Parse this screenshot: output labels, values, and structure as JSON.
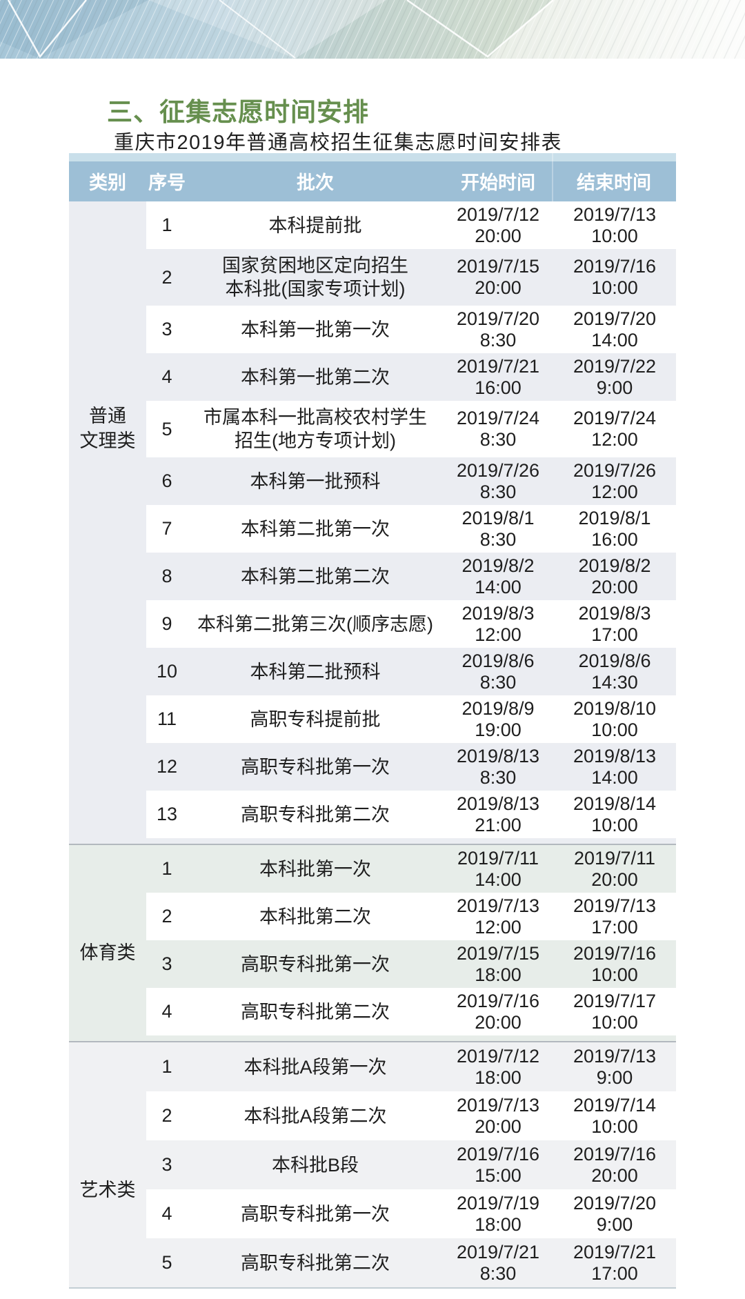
{
  "page": {
    "title": "三、征集志愿时间安排",
    "subtitle": "重庆市2019年普通高校招生征集志愿时间安排表"
  },
  "table": {
    "headers": [
      "类别",
      "序号",
      "批次",
      "开始时间",
      "结束时间"
    ],
    "sections": [
      {
        "category": "普通文理类",
        "category_lines": [
          "普通",
          "文理类"
        ],
        "rows": [
          {
            "no": "1",
            "batch_lines": [
              "本科提前批"
            ],
            "start": [
              "2019/7/12",
              "20:00"
            ],
            "end": [
              "2019/7/13",
              "10:00"
            ]
          },
          {
            "no": "2",
            "batch_lines": [
              "国家贫困地区定向招生",
              "本科批(国家专项计划)"
            ],
            "start": [
              "2019/7/15",
              "20:00"
            ],
            "end": [
              "2019/7/16",
              "10:00"
            ]
          },
          {
            "no": "3",
            "batch_lines": [
              "本科第一批第一次"
            ],
            "start": [
              "2019/7/20",
              "8:30"
            ],
            "end": [
              "2019/7/20",
              "14:00"
            ]
          },
          {
            "no": "4",
            "batch_lines": [
              "本科第一批第二次"
            ],
            "start": [
              "2019/7/21",
              "16:00"
            ],
            "end": [
              "2019/7/22",
              "9:00"
            ]
          },
          {
            "no": "5",
            "batch_lines": [
              "市属本科一批高校农村学生",
              "招生(地方专项计划)"
            ],
            "start": [
              "2019/7/24",
              "8:30"
            ],
            "end": [
              "2019/7/24",
              "12:00"
            ]
          },
          {
            "no": "6",
            "batch_lines": [
              "本科第一批预科"
            ],
            "start": [
              "2019/7/26",
              "8:30"
            ],
            "end": [
              "2019/7/26",
              "12:00"
            ]
          },
          {
            "no": "7",
            "batch_lines": [
              "本科第二批第一次"
            ],
            "start": [
              "2019/8/1",
              "8:30"
            ],
            "end": [
              "2019/8/1",
              "16:00"
            ]
          },
          {
            "no": "8",
            "batch_lines": [
              "本科第二批第二次"
            ],
            "start": [
              "2019/8/2",
              "14:00"
            ],
            "end": [
              "2019/8/2",
              "20:00"
            ]
          },
          {
            "no": "9",
            "batch_lines": [
              "本科第二批第三次(顺序志愿)"
            ],
            "start": [
              "2019/8/3",
              "12:00"
            ],
            "end": [
              "2019/8/3",
              "17:00"
            ]
          },
          {
            "no": "10",
            "batch_lines": [
              "本科第二批预科"
            ],
            "start": [
              "2019/8/6",
              "8:30"
            ],
            "end": [
              "2019/8/6",
              "14:30"
            ]
          },
          {
            "no": "11",
            "batch_lines": [
              "高职专科提前批"
            ],
            "start": [
              "2019/8/9",
              "19:00"
            ],
            "end": [
              "2019/8/10",
              "10:00"
            ]
          },
          {
            "no": "12",
            "batch_lines": [
              "高职专科批第一次"
            ],
            "start": [
              "2019/8/13",
              "8:30"
            ],
            "end": [
              "2019/8/13",
              "14:00"
            ]
          },
          {
            "no": "13",
            "batch_lines": [
              "高职专科批第二次"
            ],
            "start": [
              "2019/8/13",
              "21:00"
            ],
            "end": [
              "2019/8/14",
              "10:00"
            ]
          }
        ]
      },
      {
        "category": "体育类",
        "category_lines": [
          "体育类"
        ],
        "rows": [
          {
            "no": "1",
            "batch_lines": [
              "本科批第一次"
            ],
            "start": [
              "2019/7/11",
              "14:00"
            ],
            "end": [
              "2019/7/11",
              "20:00"
            ]
          },
          {
            "no": "2",
            "batch_lines": [
              "本科批第二次"
            ],
            "start": [
              "2019/7/13",
              "12:00"
            ],
            "end": [
              "2019/7/13",
              "17:00"
            ]
          },
          {
            "no": "3",
            "batch_lines": [
              "高职专科批第一次"
            ],
            "start": [
              "2019/7/15",
              "18:00"
            ],
            "end": [
              "2019/7/16",
              "10:00"
            ]
          },
          {
            "no": "4",
            "batch_lines": [
              "高职专科批第二次"
            ],
            "start": [
              "2019/7/16",
              "20:00"
            ],
            "end": [
              "2019/7/17",
              "10:00"
            ]
          }
        ]
      },
      {
        "category": "艺术类",
        "category_lines": [
          "艺术类"
        ],
        "rows": [
          {
            "no": "1",
            "batch_lines": [
              "本科批A段第一次"
            ],
            "start": [
              "2019/7/12",
              "18:00"
            ],
            "end": [
              "2019/7/13",
              "9:00"
            ]
          },
          {
            "no": "2",
            "batch_lines": [
              "本科批A段第二次"
            ],
            "start": [
              "2019/7/13",
              "20:00"
            ],
            "end": [
              "2019/7/14",
              "10:00"
            ]
          },
          {
            "no": "3",
            "batch_lines": [
              "本科批B段"
            ],
            "start": [
              "2019/7/16",
              "15:00"
            ],
            "end": [
              "2019/7/16",
              "20:00"
            ]
          },
          {
            "no": "4",
            "batch_lines": [
              "高职专科批第一次"
            ],
            "start": [
              "2019/7/19",
              "18:00"
            ],
            "end": [
              "2019/7/20",
              "9:00"
            ]
          },
          {
            "no": "5",
            "batch_lines": [
              "高职专科批第二次"
            ],
            "start": [
              "2019/7/21",
              "8:30"
            ],
            "end": [
              "2019/7/21",
              "17:00"
            ]
          }
        ]
      }
    ]
  },
  "colors": {
    "title_green": "#668f4e",
    "header_bg": "#9dbfd6",
    "header_top_edge": "#c9dfea",
    "section_gray": "#ebedf2",
    "section_green_tint": "#e7ede9",
    "section_gray_light": "#f0f1f3",
    "divider": "#b2b8be",
    "text": "#1e1e1e"
  }
}
